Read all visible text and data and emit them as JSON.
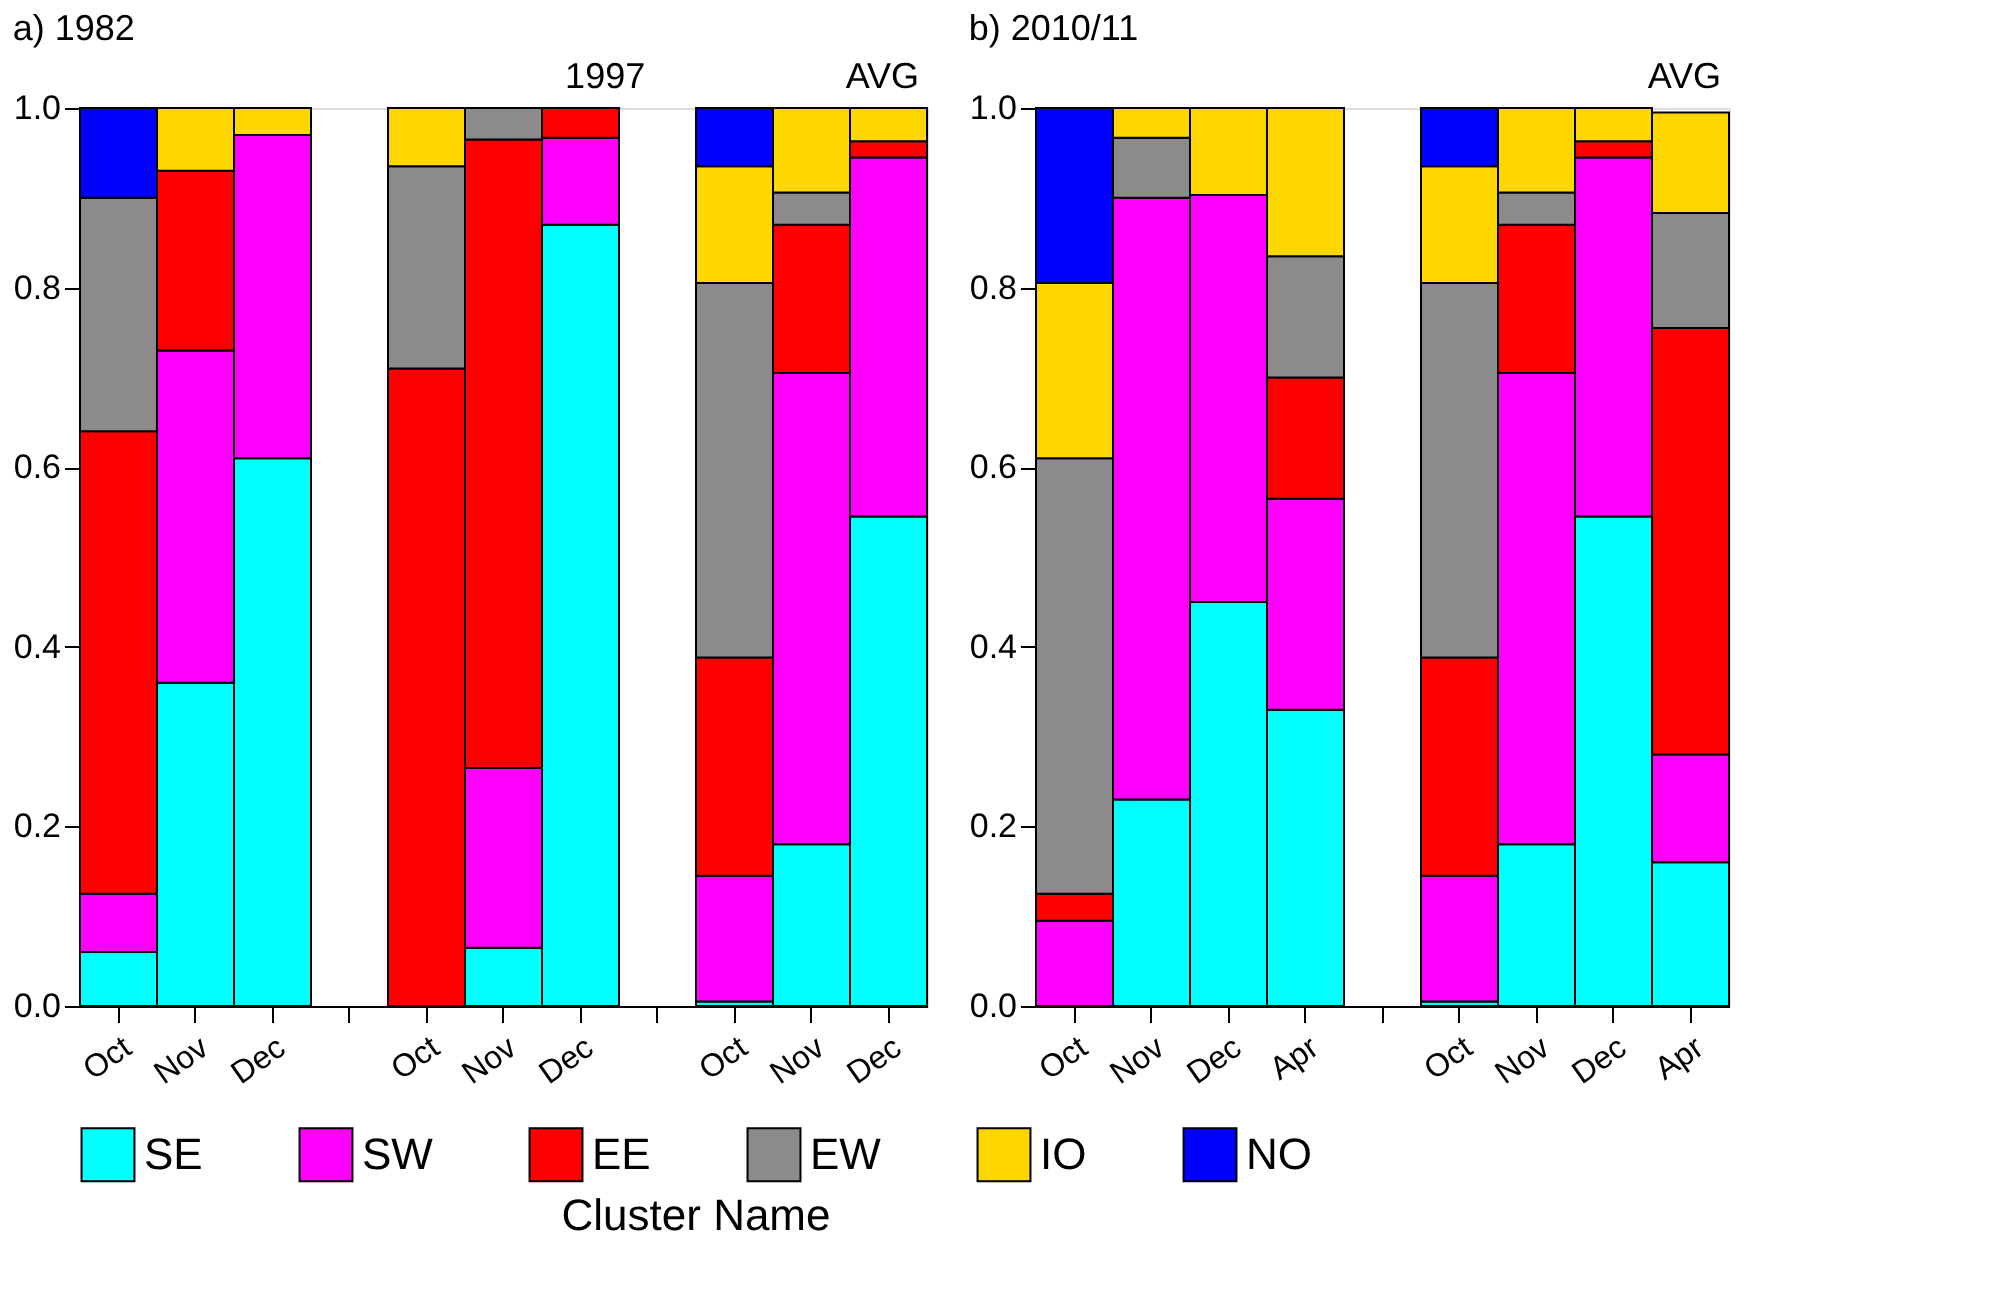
{
  "chart_data": [
    {
      "type": "bar",
      "stacked": true,
      "title": "a) 1982",
      "annotations": [
        "1997",
        "AVG"
      ],
      "categories": [
        "Oct",
        "Nov",
        "Dec",
        null,
        "Oct",
        "Nov",
        "Dec",
        null,
        "Oct",
        "Nov",
        "Dec"
      ],
      "series": [
        {
          "name": "SE",
          "color": "#00ffff",
          "values": [
            0.06,
            0.36,
            0.61,
            null,
            null,
            0.065,
            0.87,
            null,
            0.005,
            0.18,
            0.545
          ]
        },
        {
          "name": "SW",
          "color": "#ff00ff",
          "values": [
            0.065,
            0.37,
            0.36,
            null,
            null,
            0.2,
            0.097,
            null,
            0.14,
            0.525,
            0.4
          ]
        },
        {
          "name": "EE",
          "color": "#ff0000",
          "values": [
            0.515,
            0.2,
            null,
            null,
            0.71,
            0.7,
            0.033,
            null,
            0.243,
            0.165,
            0.018
          ]
        },
        {
          "name": "EW",
          "color": "#8c8a8a",
          "values": [
            0.26,
            null,
            null,
            null,
            0.225,
            0.035,
            null,
            null,
            0.417,
            0.036,
            null
          ]
        },
        {
          "name": "IO",
          "color": "#ffd700",
          "values": [
            null,
            0.07,
            0.03,
            null,
            0.065,
            null,
            null,
            null,
            0.13,
            0.094,
            0.037
          ]
        },
        {
          "name": "NO",
          "color": "#0000ff",
          "values": [
            0.1,
            null,
            null,
            null,
            null,
            null,
            null,
            null,
            0.065,
            null,
            null
          ]
        }
      ],
      "ylim": [
        0,
        1
      ],
      "yticks": [
        {
          "value": 0,
          "label": "0.0"
        },
        {
          "value": 0.2,
          "label": "0.2"
        },
        {
          "value": 0.4,
          "label": "0.4"
        },
        {
          "value": 0.6,
          "label": "0.6"
        },
        {
          "value": 0.8,
          "label": "0.8"
        },
        {
          "value": 1,
          "label": "1.0"
        }
      ],
      "legend": "bottom",
      "legend_title": "Cluster Name"
    },
    {
      "type": "bar",
      "stacked": true,
      "title": "b) 2010/11",
      "annotations": [
        "AVG"
      ],
      "categories": [
        "Oct",
        "Nov",
        "Dec",
        "Apr",
        null,
        "Oct",
        "Nov",
        "Dec",
        "Apr"
      ],
      "series": [
        {
          "name": "SE",
          "color": "#00ffff",
          "values": [
            null,
            0.23,
            0.45,
            0.33,
            null,
            0.005,
            0.18,
            0.545,
            0.16
          ]
        },
        {
          "name": "SW",
          "color": "#ff00ff",
          "values": [
            0.095,
            0.67,
            0.453,
            0.235,
            null,
            0.14,
            0.525,
            0.4,
            0.12
          ]
        },
        {
          "name": "EE",
          "color": "#ff0000",
          "values": [
            0.03,
            null,
            null,
            0.135,
            null,
            0.243,
            0.165,
            0.018,
            0.475
          ]
        },
        {
          "name": "EW",
          "color": "#8c8a8a",
          "values": [
            0.485,
            0.067,
            null,
            0.135,
            null,
            0.417,
            0.036,
            null,
            0.128
          ]
        },
        {
          "name": "IO",
          "color": "#ffd700",
          "values": [
            0.195,
            0.033,
            0.097,
            0.165,
            null,
            0.13,
            0.094,
            0.037,
            0.112
          ]
        },
        {
          "name": "NO",
          "color": "#0000ff",
          "values": [
            0.195,
            null,
            null,
            null,
            null,
            0.065,
            null,
            null,
            null
          ]
        }
      ],
      "ylim": [
        0,
        1
      ],
      "yticks": [
        {
          "value": 0,
          "label": "0.0"
        },
        {
          "value": 0.2,
          "label": "0.2"
        },
        {
          "value": 0.4,
          "label": "0.4"
        },
        {
          "value": 0.6,
          "label": "0.6"
        },
        {
          "value": 0.8,
          "label": "0.8"
        },
        {
          "value": 1,
          "label": "1.0"
        }
      ]
    }
  ]
}
